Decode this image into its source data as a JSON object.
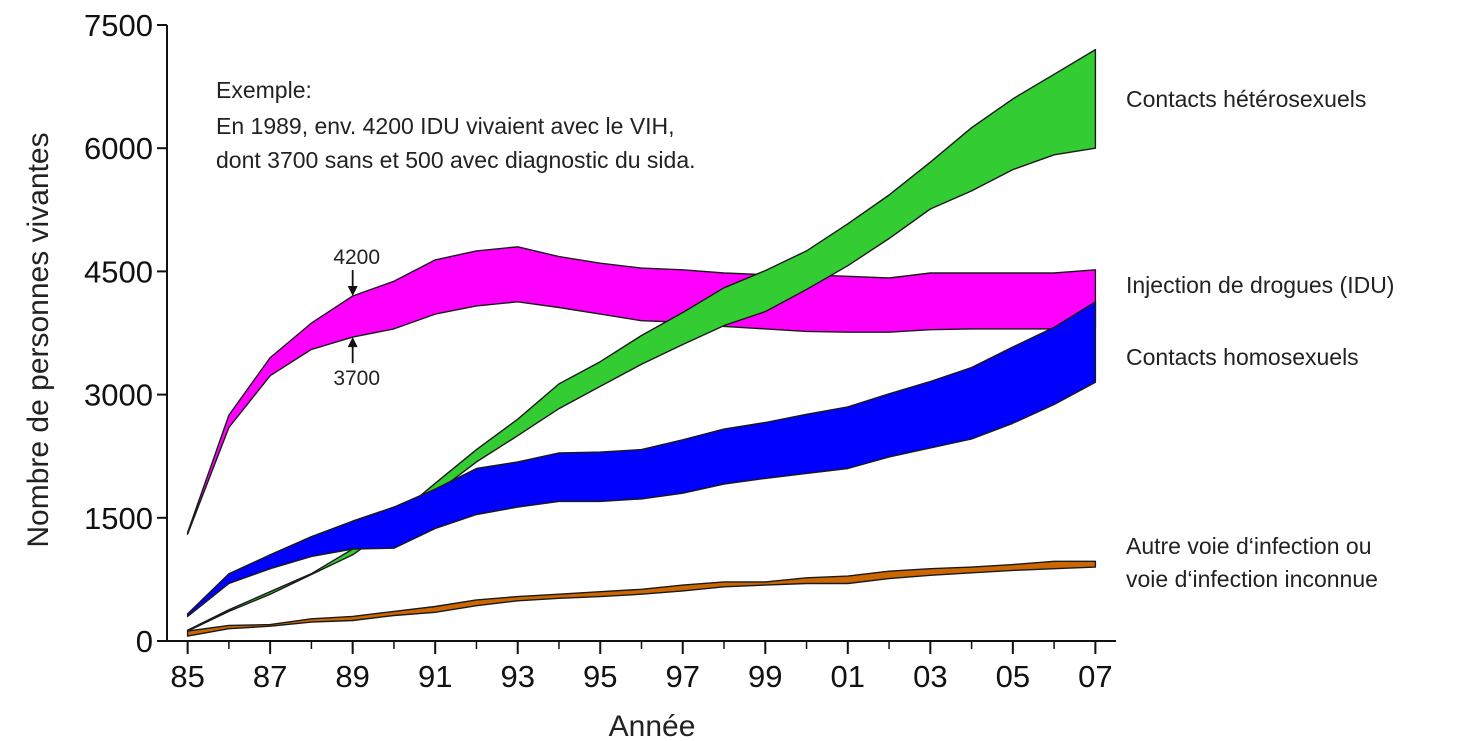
{
  "chart_data": {
    "type": "area",
    "xlabel": "Année",
    "ylabel": "Nombre de personnes vivantes",
    "xlim": [
      1984.5,
      2007.5
    ],
    "ylim": [
      0,
      7500
    ],
    "x_ticks": [
      1985,
      1987,
      1989,
      1991,
      1993,
      1995,
      1997,
      1999,
      2001,
      2003,
      2005,
      2007
    ],
    "x_tick_labels": [
      "85",
      "87",
      "89",
      "91",
      "93",
      "95",
      "97",
      "99",
      "01",
      "03",
      "05",
      "07"
    ],
    "y_ticks": [
      0,
      1500,
      3000,
      4500,
      6000,
      7500
    ],
    "y_tick_labels": [
      "0",
      "1500",
      "3000",
      "4500",
      "6000",
      "7500"
    ],
    "x": [
      1985,
      1986,
      1987,
      1988,
      1989,
      1990,
      1991,
      1992,
      1993,
      1994,
      1995,
      1996,
      1997,
      1998,
      1999,
      2000,
      2001,
      2002,
      2003,
      2004,
      2005,
      2006,
      2007
    ],
    "series": [
      {
        "name": "Injection de drogues (IDU)",
        "color": "#ff00ff",
        "upper": [
          1320,
          2750,
          3450,
          3870,
          4200,
          4380,
          4640,
          4750,
          4800,
          4680,
          4600,
          4540,
          4520,
          4480,
          4460,
          4460,
          4440,
          4420,
          4480,
          4480,
          4480,
          4480,
          4520
        ],
        "lower": [
          1300,
          2600,
          3230,
          3550,
          3700,
          3800,
          3980,
          4080,
          4130,
          4060,
          3980,
          3900,
          3880,
          3830,
          3800,
          3770,
          3760,
          3760,
          3790,
          3800,
          3800,
          3800,
          3810
        ]
      },
      {
        "name": "Contacts hétérosexuels",
        "color": "#33cc33",
        "upper": [
          130,
          380,
          600,
          820,
          1120,
          1500,
          1920,
          2330,
          2700,
          3130,
          3400,
          3720,
          4000,
          4300,
          4510,
          4750,
          5080,
          5430,
          5830,
          6250,
          6600,
          6900,
          7200
        ],
        "lower": [
          120,
          360,
          570,
          810,
          1050,
          1400,
          1800,
          2180,
          2500,
          2830,
          3100,
          3370,
          3610,
          3840,
          4010,
          4280,
          4570,
          4900,
          5260,
          5480,
          5740,
          5920,
          6000
        ]
      },
      {
        "name": "Contacts homosexuels",
        "color": "#0000ff",
        "upper": [
          330,
          820,
          1050,
          1270,
          1460,
          1630,
          1850,
          2100,
          2180,
          2290,
          2300,
          2330,
          2450,
          2580,
          2660,
          2760,
          2850,
          3010,
          3160,
          3330,
          3580,
          3820,
          4130
        ],
        "lower": [
          300,
          700,
          880,
          1030,
          1120,
          1130,
          1370,
          1540,
          1630,
          1700,
          1700,
          1730,
          1800,
          1910,
          1980,
          2040,
          2100,
          2240,
          2350,
          2460,
          2650,
          2880,
          3150
        ]
      },
      {
        "name": "Autre voie d'infection ou voie d'infection inconnue",
        "color": "#cc6600",
        "upper": [
          120,
          190,
          200,
          270,
          300,
          360,
          420,
          500,
          540,
          570,
          600,
          630,
          680,
          720,
          720,
          770,
          790,
          850,
          880,
          900,
          930,
          970,
          970
        ],
        "lower": [
          60,
          150,
          180,
          230,
          250,
          310,
          350,
          430,
          490,
          520,
          540,
          570,
          610,
          660,
          680,
          700,
          700,
          760,
          800,
          830,
          860,
          880,
          900
        ]
      }
    ],
    "legend_labels": {
      "heterosexual": "Contacts hétérosexuels",
      "idu": "Injection de drogues (IDU)",
      "homosexual": "Contacts homosexuels",
      "other_line1": "Autre voie d‘infection ou",
      "other_line2": "voie d‘infection inconnue"
    },
    "annotation": {
      "line1": "Exemple:",
      "line2": "En 1989, env. 4200 IDU vivaient avec le VIH,",
      "line3": "dont 3700 sans et 500 avec diagnostic du sida.",
      "marker_upper_label": "4200",
      "marker_lower_label": "3700",
      "marker_x": 1989,
      "marker_upper_value": 4200,
      "marker_lower_value": 3700
    }
  }
}
